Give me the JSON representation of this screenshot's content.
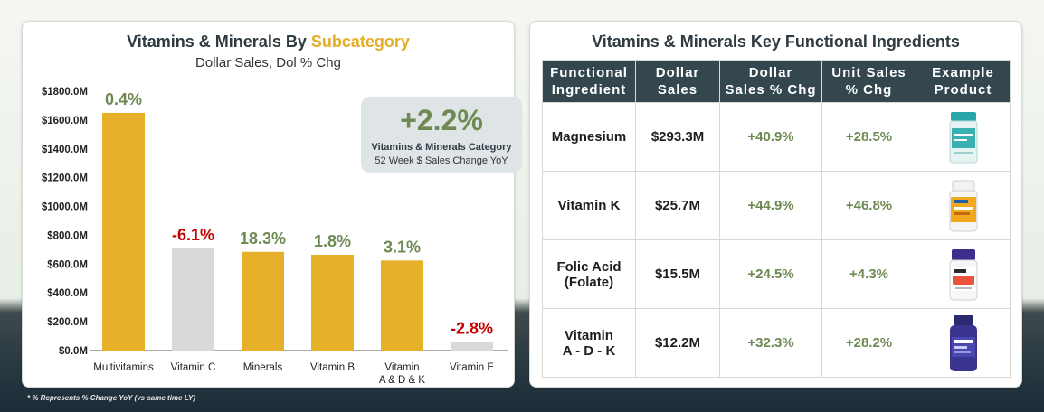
{
  "left_panel": {
    "title_main": "Vitamins & Minerals By ",
    "title_accent": "Subcategory",
    "subtitle": "Dollar Sales, Dol % Chg",
    "callout": {
      "value": "+2.2%",
      "label": "Vitamins & Minerals Category",
      "sublabel": "52 Week $ Sales Change YoY"
    }
  },
  "chart_data": {
    "type": "bar",
    "categories": [
      "Multivitamins",
      "Vitamin C",
      "Minerals",
      "Vitamin B",
      "Vitamin A & D & K",
      "Vitamin E"
    ],
    "category_lines": [
      [
        "Multivitamins"
      ],
      [
        "Vitamin C"
      ],
      [
        "Minerals"
      ],
      [
        "Vitamin B"
      ],
      [
        "Vitamin",
        "A & D & K"
      ],
      [
        "Vitamin E"
      ]
    ],
    "values": [
      1650,
      710,
      685,
      665,
      625,
      60
    ],
    "value_unit": "$M",
    "data_labels": [
      "0.4%",
      "-6.1%",
      "18.3%",
      "1.8%",
      "3.1%",
      "-2.8%"
    ],
    "ytick_values": [
      0,
      200,
      400,
      600,
      800,
      1000,
      1200,
      1400,
      1600,
      1800
    ],
    "ytick_labels": [
      "$0.0M",
      "$200.0M",
      "$400.0M",
      "$600.0M",
      "$800.0M",
      "$1000.0M",
      "$1200.0M",
      "$1400.0M",
      "$1600.0M",
      "$1800.0M"
    ],
    "ylim": [
      0,
      1800
    ],
    "grid": false,
    "colors": {
      "growth_bar": "#e6b02a",
      "decline_bar": "#d9d9d9",
      "positive_label": "#6e8a52",
      "negative_label": "#c00000"
    },
    "bar_kinds": [
      "growth",
      "decline",
      "growth",
      "growth",
      "growth",
      "decline"
    ]
  },
  "right_panel": {
    "title": "Vitamins & Minerals Key Functional Ingredients",
    "headers": [
      "Functional Ingredient",
      "Dollar Sales",
      "Dollar Sales % Chg",
      "Unit Sales % Chg",
      "Example Product"
    ],
    "rows": [
      {
        "ingredient": "Magnesium",
        "dollar_sales": "$293.3M",
        "dollar_pct": "+40.9%",
        "unit_pct": "+28.5%",
        "product_icon": "magnesium-supplement-bottle"
      },
      {
        "ingredient": "Vitamin K",
        "dollar_sales": "$25.7M",
        "dollar_pct": "+44.9%",
        "unit_pct": "+46.8%",
        "product_icon": "vitamin-k-supplement-bottle"
      },
      {
        "ingredient": "Folic Acid (Folate)",
        "dollar_sales": "$15.5M",
        "dollar_pct": "+24.5%",
        "unit_pct": "+4.3%",
        "product_icon": "folate-supplement-bottle"
      },
      {
        "ingredient": "Vitamin A - D - K",
        "dollar_sales": "$12.2M",
        "dollar_pct": "+32.3%",
        "unit_pct": "+28.2%",
        "product_icon": "vitamin-adk-supplement-bottle"
      }
    ]
  },
  "footnote": "* % Represents % Change YoY (vs same time LY)"
}
